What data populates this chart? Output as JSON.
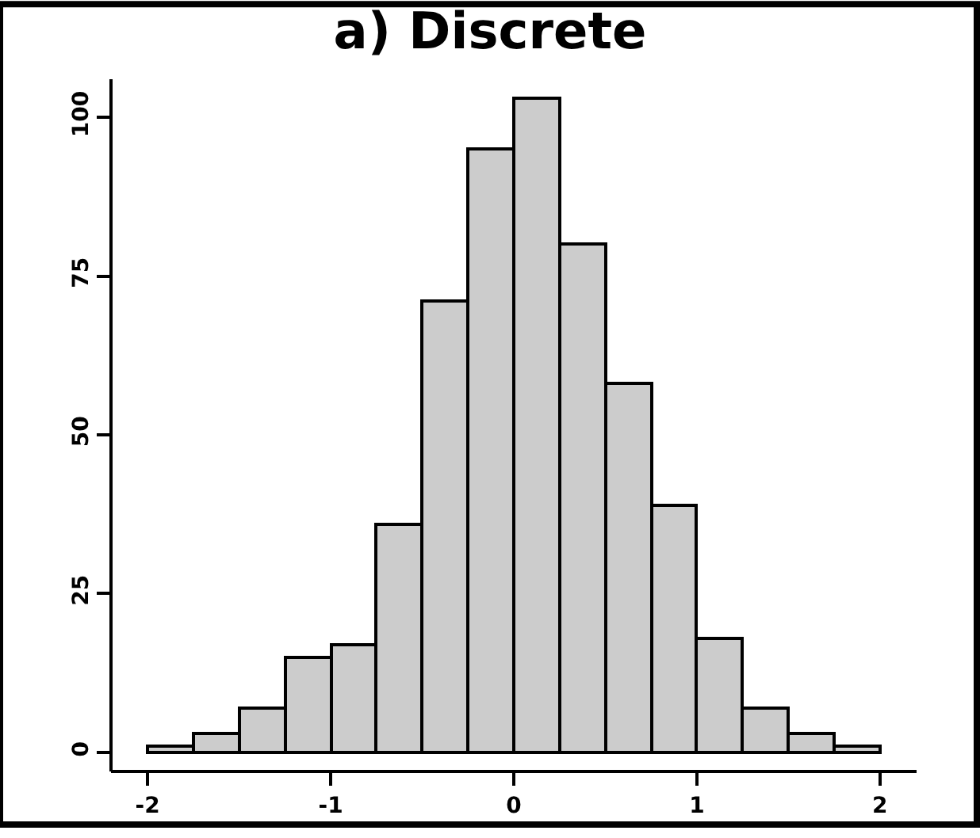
{
  "chart_data": {
    "type": "histogram",
    "title": "a) Discrete",
    "bins": [
      -2,
      -1.75,
      -1.5,
      -1.25,
      -1,
      -0.75,
      -0.5,
      -0.25,
      0,
      0.25,
      0.5,
      0.75,
      1,
      1.25,
      1.5,
      1.75,
      2
    ],
    "values": [
      1,
      3,
      7,
      15,
      17,
      36,
      71,
      95,
      103,
      80,
      58,
      39,
      18,
      7,
      3,
      1
    ],
    "color": "#cccccc",
    "xlim": [
      -2.2,
      2.2
    ],
    "xticks": [
      -2,
      -1,
      0,
      1,
      2
    ],
    "ylim": [
      -3,
      106
    ],
    "yticks": [
      0,
      25,
      50,
      75,
      100
    ]
  }
}
